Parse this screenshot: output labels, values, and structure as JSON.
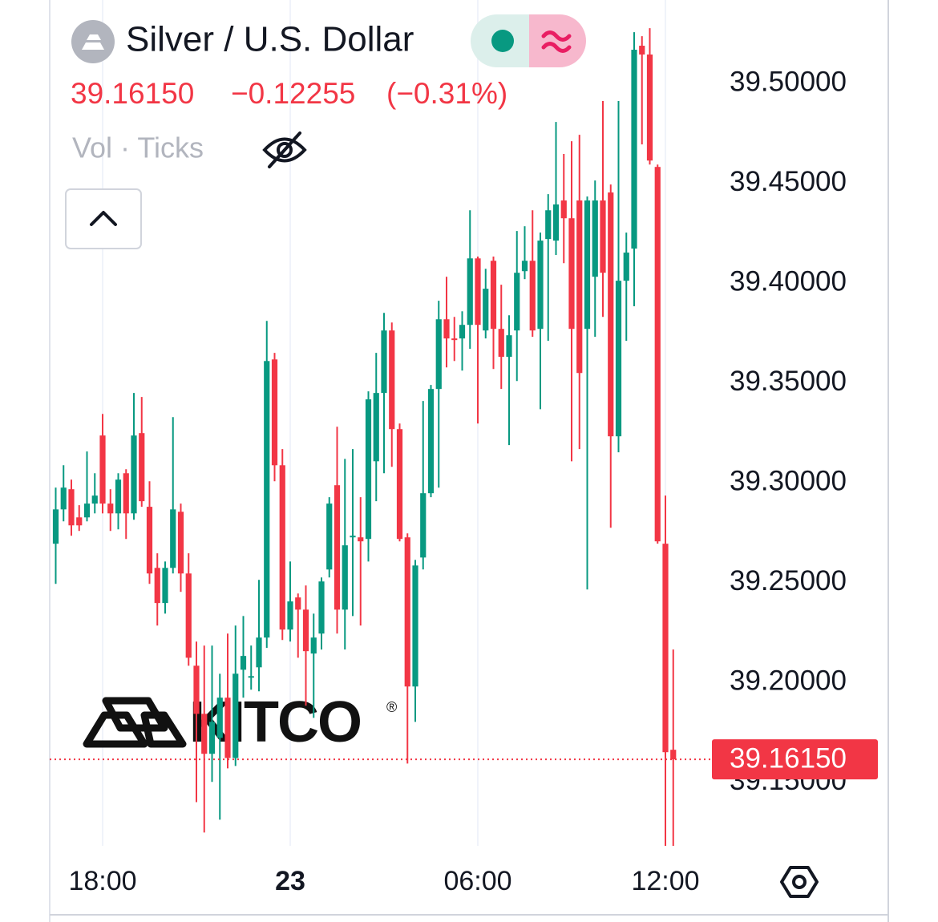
{
  "chart_data": {
    "type": "candlestick",
    "title": "Silver / U.S. Dollar",
    "price": "39.16150",
    "change": "−0.12255",
    "change_percent": "(−0.31%)",
    "indicator": "Vol · Ticks",
    "watermark": "KITCO",
    "watermark_mark": "®",
    "up_color": "#089981",
    "down_color": "#f23645",
    "last_price": {
      "value": 39.1615,
      "label": "39.16150"
    },
    "categories": [
      null,
      null,
      null,
      null,
      null,
      null,
      "18:00",
      null,
      null,
      null,
      null,
      null,
      null,
      null,
      null,
      null,
      null,
      null,
      null,
      null,
      null,
      null,
      null,
      null,
      null,
      null,
      null,
      null,
      null,
      null,
      "23",
      null,
      null,
      null,
      null,
      null,
      null,
      null,
      null,
      null,
      null,
      null,
      null,
      null,
      null,
      null,
      null,
      null,
      null,
      null,
      null,
      null,
      null,
      null,
      "06:00",
      null,
      null,
      null,
      null,
      null,
      null,
      null,
      null,
      null,
      null,
      null,
      null,
      null,
      null,
      null,
      null,
      null,
      null,
      null,
      null,
      null,
      null,
      null,
      "12:00",
      null
    ],
    "open": [
      39.2695,
      39.2867,
      39.2968,
      39.2827,
      39.2827,
      39.2896,
      39.3237,
      39.2896,
      39.2847,
      39.3048,
      39.2847,
      39.3249,
      39.288,
      39.2574,
      39.2398,
      39.2574,
      39.2855,
      39.2546,
      39.2084,
      39.1843,
      39.1643,
      39.1723,
      39.1924,
      39.1622,
      39.2064,
      39.2024,
      39.2076,
      39.2225,
      39.3618,
      39.3088,
      39.2265,
      39.2426,
      39.2365,
      39.2145,
      39.2245,
      39.2566,
      39.2988,
      39.2365,
      39.2727,
      39.2727,
      39.2719,
      39.3108,
      39.345,
      39.3763,
      39.3269,
      39.2727,
      39.198,
      39.2626,
      39.2948,
      39.347,
      39.3819,
      39.3723,
      39.3723,
      39.3791,
      39.4124,
      39.3763,
      39.4112,
      39.3771,
      39.3631,
      39.3763,
      39.406,
      39.4112,
      39.3771,
      39.4221,
      39.4213,
      39.4414,
      39.4325,
      39.4414,
      39.3771,
      39.4032,
      39.4414,
      39.4454,
      39.3233,
      39.4012,
      39.4173,
      39.5189,
      39.5145,
      39.4582,
      39.2695,
      39.1663
    ],
    "high": [
      39.2976,
      39.3088,
      39.3016,
      39.2888,
      39.3157,
      39.3048,
      39.3345,
      39.2968,
      39.3048,
      39.3068,
      39.345,
      39.343,
      39.3008,
      39.2647,
      39.2606,
      39.3329,
      39.2896,
      39.2647,
      39.2205,
      39.2185,
      39.2185,
      39.2044,
      39.2245,
      39.2285,
      39.2333,
      39.2185,
      39.2514,
      39.3811,
      39.3651,
      39.3169,
      39.2606,
      39.2446,
      39.2486,
      39.2345,
      39.2526,
      39.2928,
      39.3281,
      39.312,
      39.3169,
      39.2928,
      39.3458,
      39.3651,
      39.3851,
      39.3803,
      39.3297,
      39.2747,
      39.2614,
      39.341,
      39.349,
      39.3912,
      39.4032,
      39.3831,
      39.3859,
      39.4365,
      39.4133,
      39.4072,
      39.4133,
      39.3992,
      39.3839,
      39.4261,
      39.4285,
      39.4365,
      39.4253,
      39.4446,
      39.4807,
      39.4647,
      39.4711,
      39.4743,
      39.4434,
      39.4514,
      39.4912,
      39.4494,
      39.4912,
      39.4253,
      39.5257,
      39.5237,
      39.5277,
      39.4594,
      39.2936,
      39.2165
    ],
    "low": [
      39.2494,
      39.2807,
      39.2735,
      39.2759,
      39.2807,
      39.2847,
      39.2847,
      39.2759,
      39.2767,
      39.2719,
      39.2815,
      39.288,
      39.2494,
      39.2285,
      39.2345,
      39.2546,
      39.2454,
      39.2084,
      39.1401,
      39.1249,
      39.1502,
      39.1313,
      39.157,
      39.1582,
      39.1924,
      39.1964,
      39.1956,
      39.2173,
      39.3008,
      39.2213,
      39.2205,
      39.2124,
      39.1884,
      39.1823,
      39.2165,
      39.2526,
      39.2245,
      39.2165,
      39.2333,
      39.2285,
      39.2606,
      39.2908,
      39.3048,
      39.308,
      39.2707,
      39.1594,
      39.1803,
      39.2566,
      39.2928,
      39.2976,
      39.3578,
      39.361,
      39.3562,
      39.3671,
      39.3297,
      39.3723,
      39.357,
      39.347,
      39.3189,
      39.351,
      39.402,
      39.3731,
      39.3369,
      39.3711,
      39.4141,
      39.41,
      39.3108,
      39.3169,
      39.2466,
      39.3731,
      39.3831,
      39.2775,
      39.3153,
      39.3711,
      39.3884,
      39.4695,
      39.4594,
      39.2695,
      39.1181,
      39.1181
    ],
    "close": [
      39.2867,
      39.2976,
      39.2787,
      39.2787,
      39.2896,
      39.2936,
      39.2896,
      39.2847,
      39.3016,
      39.2847,
      39.3237,
      39.2908,
      39.2546,
      39.2398,
      39.2574,
      39.2867,
      39.2546,
      39.2124,
      39.1843,
      39.1643,
      39.1803,
      39.1924,
      39.1622,
      39.2044,
      39.2133,
      39.2032,
      39.2225,
      39.361,
      39.3088,
      39.2265,
      39.2406,
      39.2365,
      39.2157,
      39.2225,
      39.2506,
      39.2896,
      39.2365,
      39.2687,
      39.2735,
      39.2707,
      39.3418,
      39.345,
      39.3763,
      39.3269,
      39.2719,
      39.198,
      39.2586,
      39.2948,
      39.347,
      39.3819,
      39.3723,
      39.3715,
      39.3791,
      39.4124,
      39.3791,
      39.3972,
      39.3771,
      39.3631,
      39.3739,
      39.4052,
      39.4112,
      39.3763,
      39.4213,
      39.4365,
      39.4394,
      39.4325,
      39.3771,
      39.355,
      39.4414,
      39.4414,
      39.4052,
      39.3233,
      39.4012,
      39.4153,
      39.5169,
      39.5145,
      39.4614,
      39.2707,
      39.1651,
      39.1615
    ],
    "ylim": [
      39.1182,
      39.5418
    ],
    "yticks": [
      {
        "value": 39.15,
        "label": "39.15000"
      },
      {
        "value": 39.2,
        "label": "39.20000"
      },
      {
        "value": 39.25,
        "label": "39.25000"
      },
      {
        "value": 39.3,
        "label": "39.30000"
      },
      {
        "value": 39.35,
        "label": "39.35000"
      },
      {
        "value": 39.4,
        "label": "39.40000"
      },
      {
        "value": 39.45,
        "label": "39.45000"
      },
      {
        "value": 39.5,
        "label": "39.50000"
      }
    ],
    "grid": true
  }
}
